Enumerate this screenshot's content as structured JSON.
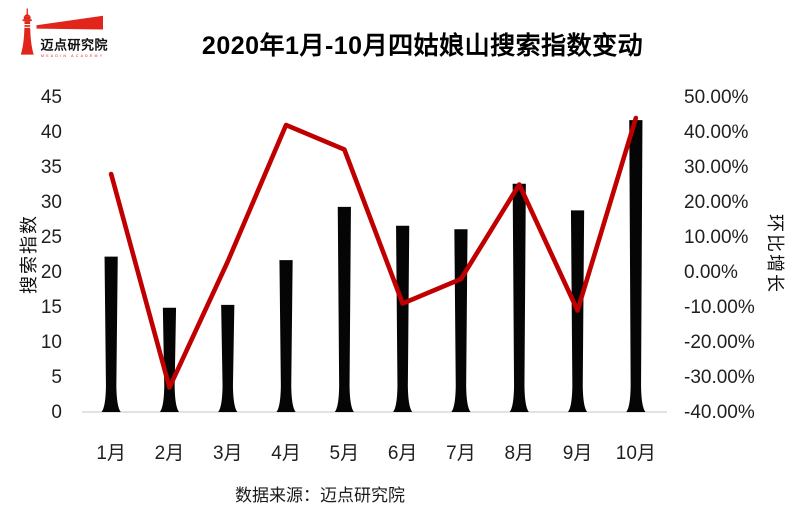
{
  "logo": {
    "name": "迈点研究院",
    "subtitle": "MEADIN ACADEMY"
  },
  "title": "2020年1月-10月四姑娘山搜索指数变动",
  "footer": {
    "text": "数据来源：迈点研究院"
  },
  "colors": {
    "bar": "#050505",
    "line": "#c00000",
    "axis_line": "#d9d9d9",
    "logo_red": "#e1251b",
    "text": "#1f1f1f"
  },
  "chart_data": {
    "type": "bar+line combo",
    "title": "2020年1月-10月四姑娘山搜索指数变动",
    "categories": [
      "1月",
      "2月",
      "3月",
      "4月",
      "5月",
      "6月",
      "7月",
      "8月",
      "9月",
      "10月"
    ],
    "series": [
      {
        "name": "搜索指数",
        "type": "bar",
        "axis": "left",
        "values": [
          22.2,
          14.9,
          15.3,
          21.7,
          29.3,
          26.6,
          26.1,
          32.6,
          28.8,
          41.7
        ]
      },
      {
        "name": "环比增长",
        "type": "line",
        "axis": "right",
        "unit": "%",
        "values": [
          28,
          -33,
          3,
          42,
          35,
          -9,
          -2,
          25,
          -11,
          44
        ]
      }
    ],
    "left_axis": {
      "title": "搜索指数",
      "min": 0,
      "max": 45,
      "step": 5,
      "tick_labels": [
        "45",
        "40",
        "35",
        "30",
        "25",
        "20",
        "15",
        "10",
        "5",
        "0"
      ]
    },
    "right_axis": {
      "title": "环比增长",
      "min": -40,
      "max": 50,
      "step": 10,
      "tick_labels": [
        "50.00%",
        "40.00%",
        "30.00%",
        "20.00%",
        "10.00%",
        "0.00%",
        "-10.00%",
        "-20.00%",
        "-30.00%",
        "-40.00%"
      ]
    },
    "grid": false,
    "legend": "none",
    "source": "数据来源：迈点研究院"
  }
}
